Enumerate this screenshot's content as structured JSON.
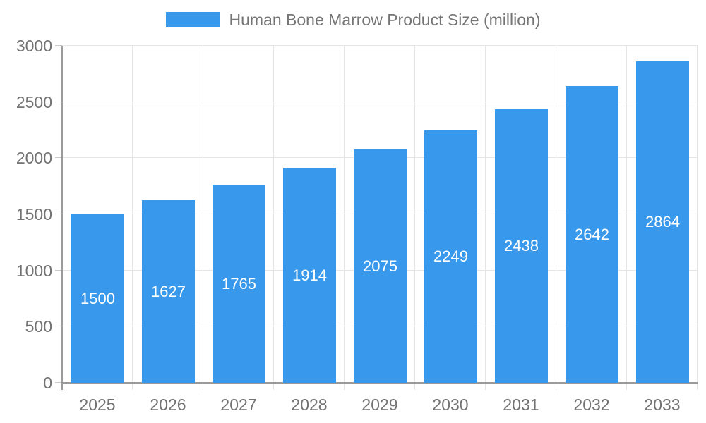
{
  "legend": {
    "label": "Human Bone Marrow Product Size (million)"
  },
  "chart_data": {
    "type": "bar",
    "title": "",
    "xlabel": "",
    "ylabel": "",
    "categories": [
      "2025",
      "2026",
      "2027",
      "2028",
      "2029",
      "2030",
      "2031",
      "2032",
      "2033"
    ],
    "series": [
      {
        "name": "Human Bone Marrow Product Size (million)",
        "values": [
          1500,
          1627,
          1765,
          1914,
          2075,
          2249,
          2438,
          2642,
          2864
        ]
      }
    ],
    "value_labels": [
      "1500",
      "1627",
      "1765",
      "1914",
      "2075",
      "2249",
      "2438",
      "2642",
      "2864"
    ],
    "ylim": [
      0,
      3000
    ],
    "ytick_step": 500,
    "ytick_labels": [
      "0",
      "500",
      "1000",
      "1500",
      "2000",
      "2500",
      "3000"
    ],
    "grid": true,
    "legend_position": "top-center",
    "colors": {
      "bar": "#3899ec",
      "value_label": "#ffffff",
      "axis_text": "#737373",
      "legend_text": "#757575",
      "gridline": "#e5e5e5",
      "tick": "#c9c9c9",
      "axis_line": "#9a9a9a",
      "background": "#ffffff"
    }
  }
}
